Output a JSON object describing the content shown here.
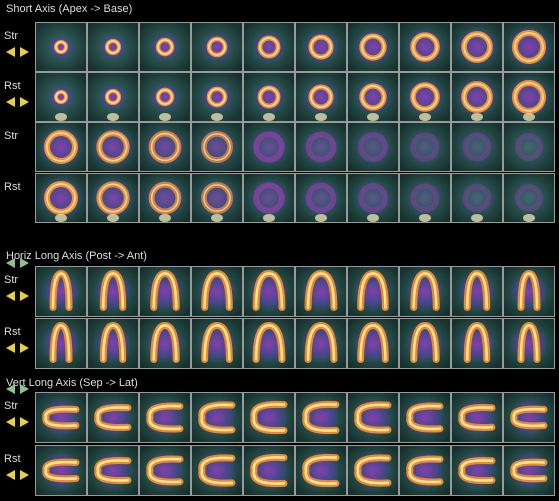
{
  "sections": [
    {
      "title": "Short Axis (Apex -> Base)",
      "rows": [
        "Str",
        "Rst",
        "Str",
        "Rst"
      ]
    },
    {
      "title": "Horiz Long Axis (Post -> Ant)",
      "rows": [
        "Str",
        "Rst"
      ]
    },
    {
      "title": "Vert Long Axis (Sep -> Lat)",
      "rows": [
        "Str",
        "Rst"
      ]
    }
  ]
}
